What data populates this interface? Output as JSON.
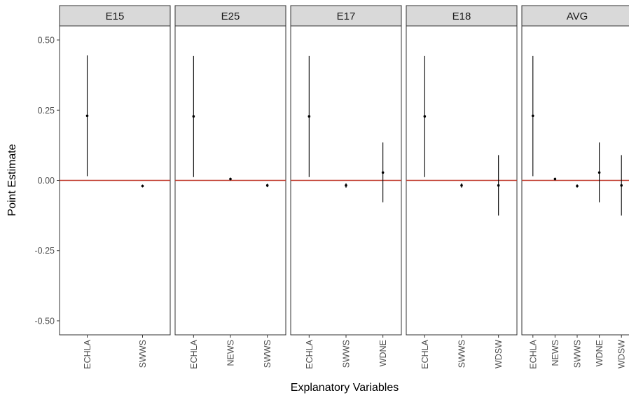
{
  "chart_data": {
    "type": "scatter",
    "subtype": "faceted point estimates with interval bars",
    "xlabel": "Explanatory Variables",
    "ylabel": "Point Estimate",
    "ylim": [
      -0.55,
      0.55
    ],
    "yticks": [
      0.5,
      0.25,
      0.0,
      -0.25,
      -0.5
    ],
    "ytick_labels": [
      "0.50",
      "0.25",
      "0.00",
      "-0.25",
      "-0.50"
    ],
    "reference_line": {
      "y": 0,
      "color": "#c0392b"
    },
    "grid": false,
    "facets": [
      {
        "label": "E15",
        "categories": [
          "ECHLA",
          "SWWS"
        ],
        "points": [
          {
            "x": "ECHLA",
            "y": 0.23,
            "lower": 0.015,
            "upper": 0.445
          },
          {
            "x": "SWWS",
            "y": -0.02,
            "lower": -0.025,
            "upper": -0.015
          }
        ]
      },
      {
        "label": "E25",
        "categories": [
          "ECHLA",
          "NEWS",
          "SWWS"
        ],
        "points": [
          {
            "x": "ECHLA",
            "y": 0.228,
            "lower": 0.012,
            "upper": 0.443
          },
          {
            "x": "NEWS",
            "y": 0.005,
            "lower": 0.0,
            "upper": 0.01
          },
          {
            "x": "SWWS",
            "y": -0.018,
            "lower": -0.024,
            "upper": -0.012
          }
        ]
      },
      {
        "label": "E17",
        "categories": [
          "ECHLA",
          "SWWS",
          "WDNE"
        ],
        "points": [
          {
            "x": "ECHLA",
            "y": 0.228,
            "lower": 0.012,
            "upper": 0.443
          },
          {
            "x": "SWWS",
            "y": -0.018,
            "lower": -0.026,
            "upper": -0.01
          },
          {
            "x": "WDNE",
            "y": 0.028,
            "lower": -0.078,
            "upper": 0.135
          }
        ]
      },
      {
        "label": "E18",
        "categories": [
          "ECHLA",
          "SWWS",
          "WDSW"
        ],
        "points": [
          {
            "x": "ECHLA",
            "y": 0.228,
            "lower": 0.012,
            "upper": 0.443
          },
          {
            "x": "SWWS",
            "y": -0.018,
            "lower": -0.026,
            "upper": -0.01
          },
          {
            "x": "WDSW",
            "y": -0.018,
            "lower": -0.125,
            "upper": 0.09
          }
        ]
      },
      {
        "label": "AVG",
        "categories": [
          "ECHLA",
          "NEWS",
          "SWWS",
          "WDNE",
          "WDSW"
        ],
        "points": [
          {
            "x": "ECHLA",
            "y": 0.23,
            "lower": 0.015,
            "upper": 0.443
          },
          {
            "x": "NEWS",
            "y": 0.005,
            "lower": 0.0,
            "upper": 0.01
          },
          {
            "x": "SWWS",
            "y": -0.02,
            "lower": -0.026,
            "upper": -0.014
          },
          {
            "x": "WDNE",
            "y": 0.028,
            "lower": -0.078,
            "upper": 0.135
          },
          {
            "x": "WDSW",
            "y": -0.018,
            "lower": -0.125,
            "upper": 0.09
          }
        ]
      }
    ]
  }
}
